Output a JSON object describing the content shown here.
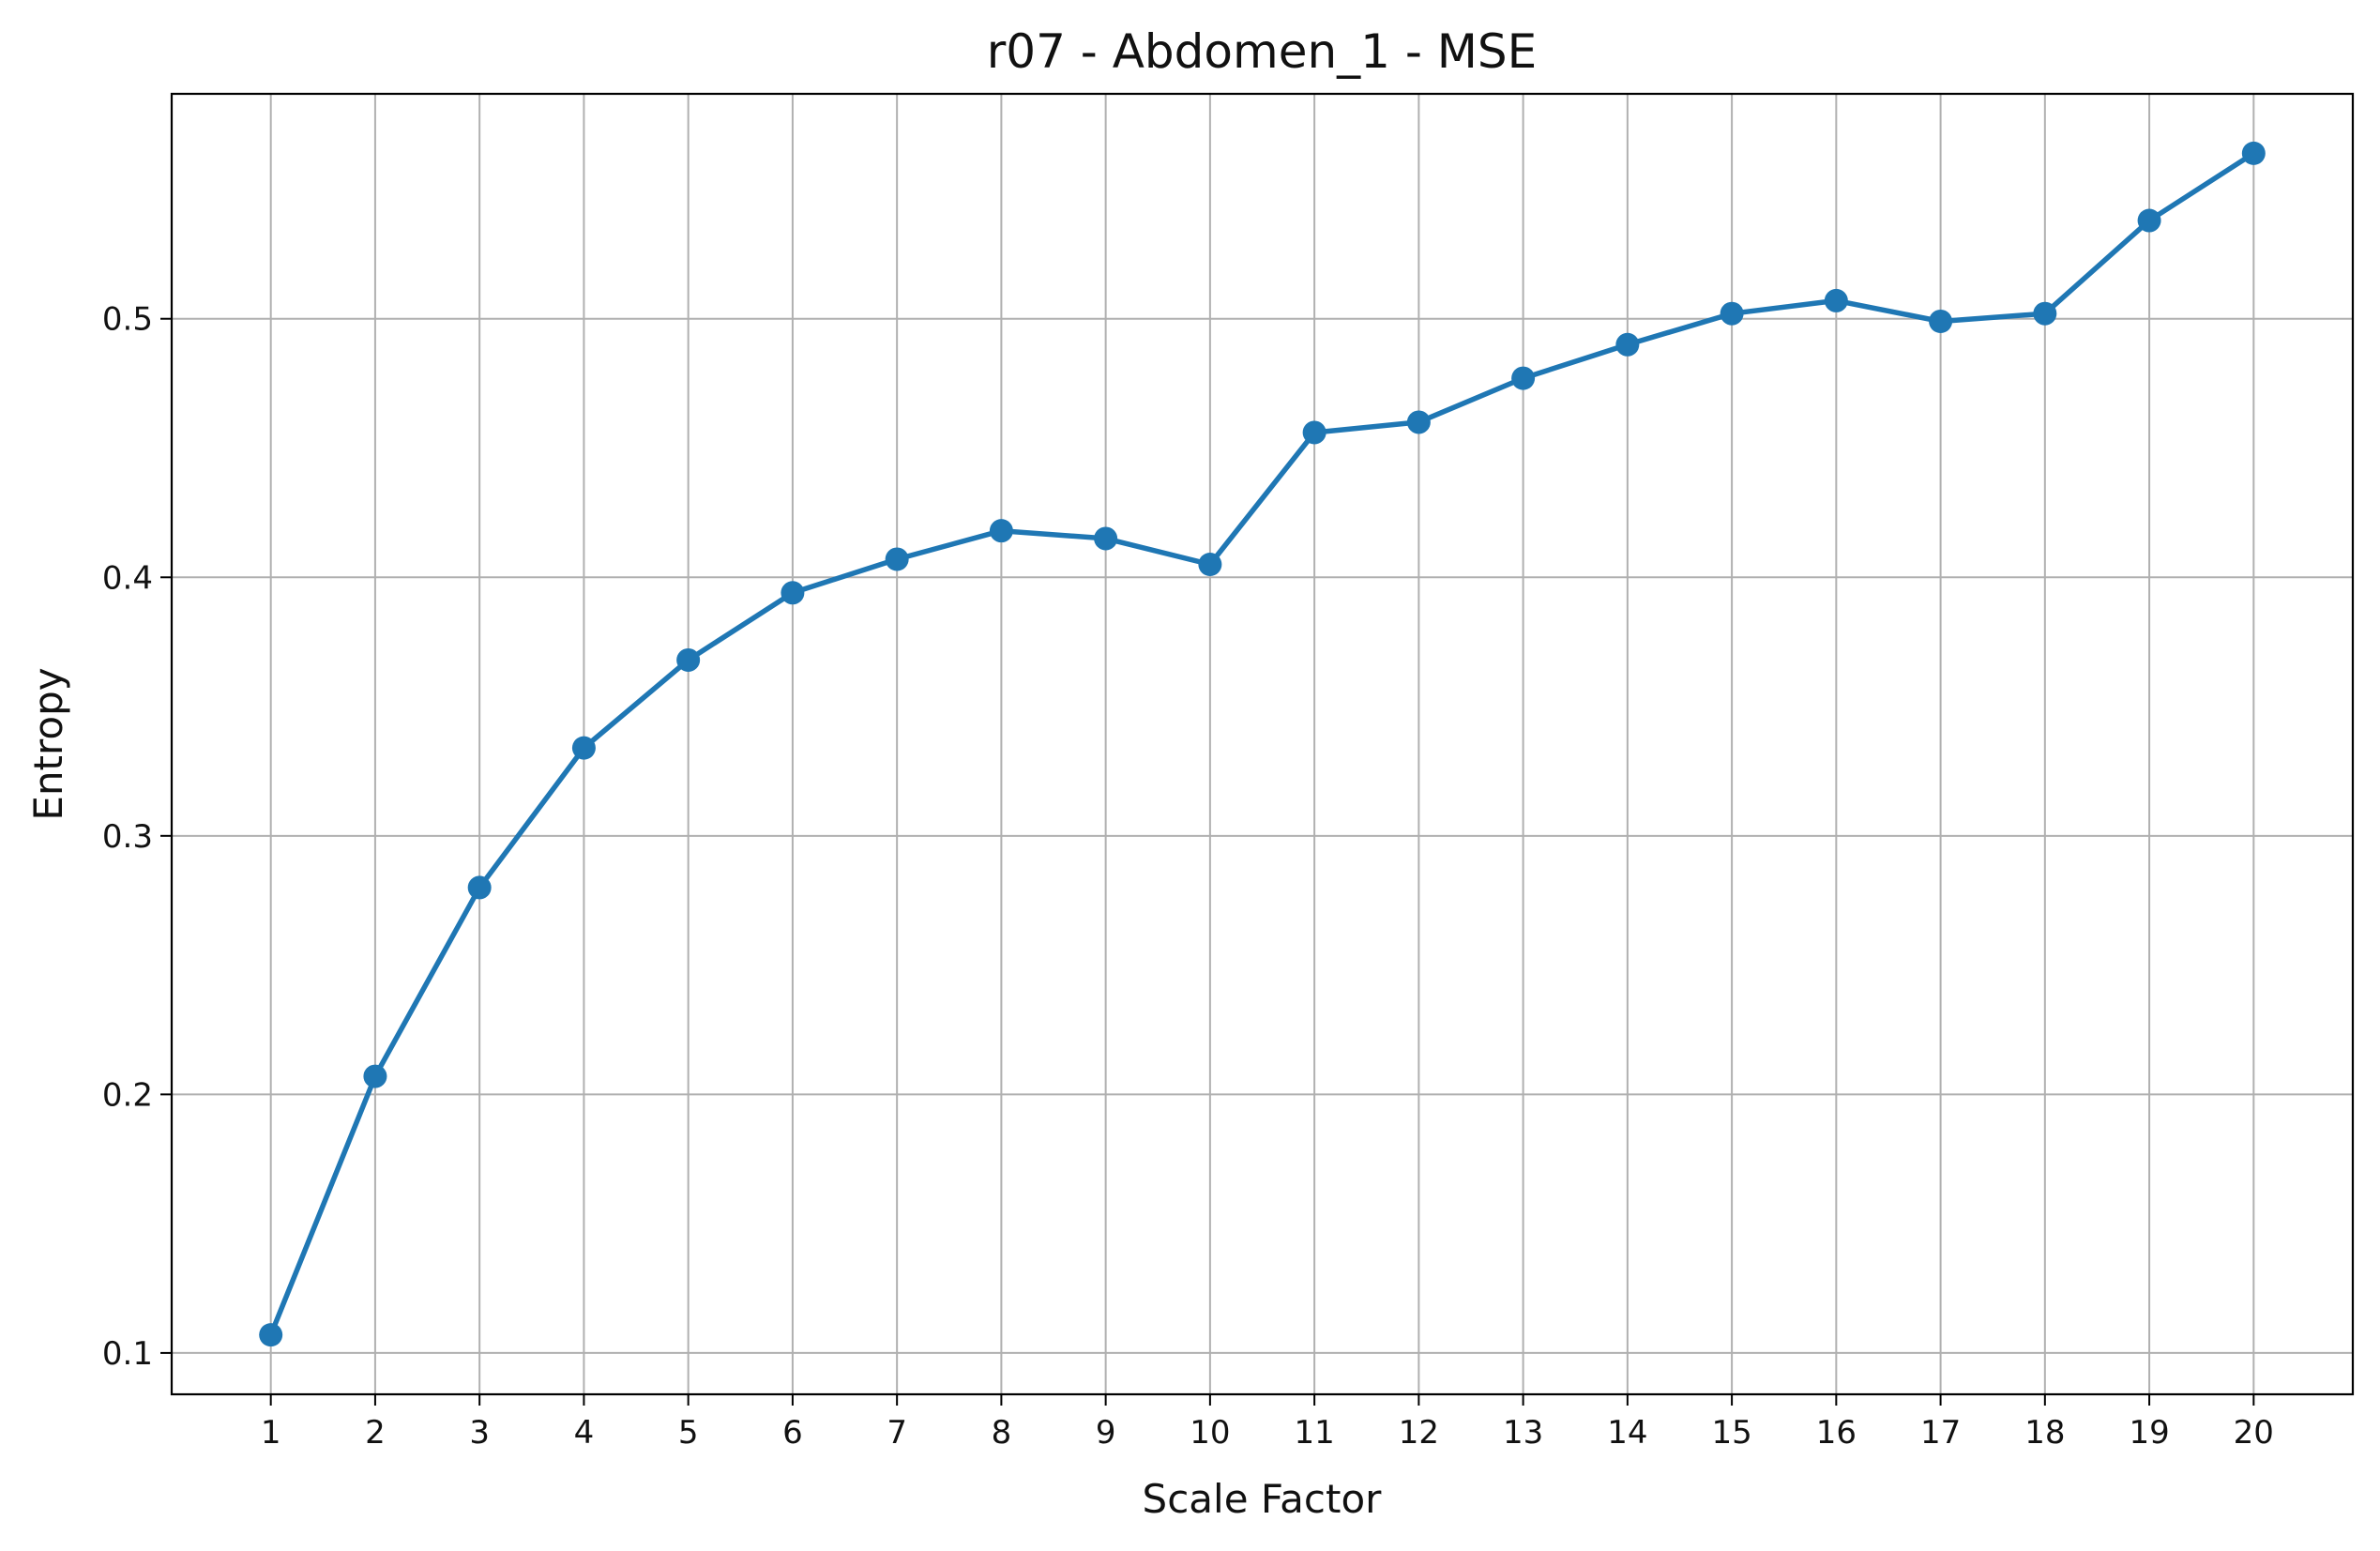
{
  "chart_data": {
    "type": "line",
    "title": "r07 - Abdomen_1 - MSE",
    "xlabel": "Scale Factor",
    "ylabel": "Entropy",
    "x": [
      1,
      2,
      3,
      4,
      5,
      6,
      7,
      8,
      9,
      10,
      11,
      12,
      13,
      14,
      15,
      16,
      17,
      18,
      19,
      20
    ],
    "series": [
      {
        "name": "MSE",
        "color": "#1f77b4",
        "values": [
          0.107,
          0.207,
          0.28,
          0.334,
          0.368,
          0.394,
          0.407,
          0.418,
          0.415,
          0.405,
          0.456,
          0.46,
          0.477,
          0.49,
          0.502,
          0.507,
          0.499,
          0.502,
          0.538,
          0.564
        ]
      }
    ],
    "xlim": [
      0.05,
      20.95
    ],
    "ylim": [
      0.084,
      0.587
    ],
    "yticks": [
      0.1,
      0.2,
      0.3,
      0.4,
      0.5
    ],
    "ytick_labels": [
      "0.1",
      "0.2",
      "0.3",
      "0.4",
      "0.5"
    ],
    "xticks": [
      1,
      2,
      3,
      4,
      5,
      6,
      7,
      8,
      9,
      10,
      11,
      12,
      13,
      14,
      15,
      16,
      17,
      18,
      19,
      20
    ],
    "xtick_labels": [
      "1",
      "2",
      "3",
      "4",
      "5",
      "6",
      "7",
      "8",
      "9",
      "10",
      "11",
      "12",
      "13",
      "14",
      "15",
      "16",
      "17",
      "18",
      "19",
      "20"
    ],
    "grid": true,
    "grid_color": "#b0b0b0",
    "axis_color": "#000000"
  }
}
